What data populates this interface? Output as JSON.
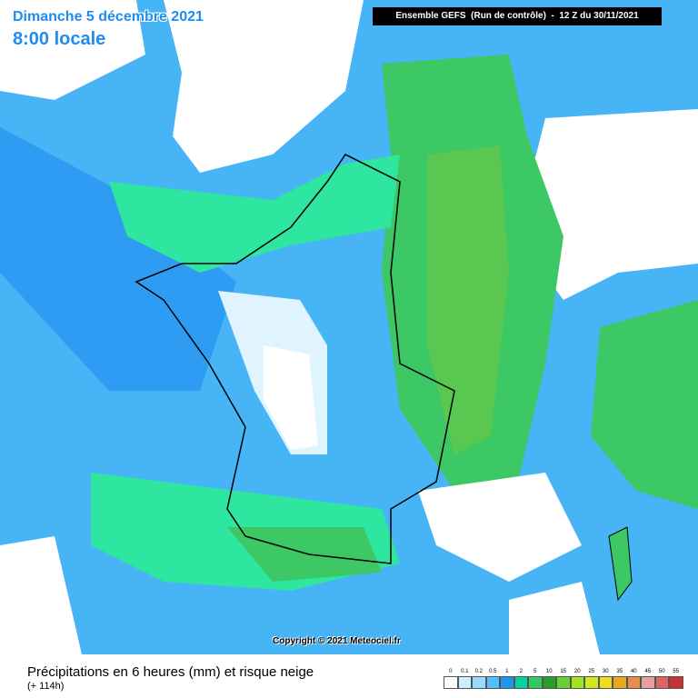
{
  "header": {
    "date": "Dimanche 5 décembre 2021",
    "time": "8:00 locale",
    "run": "Ensemble GEFS  (Run de contrôle)  -  12 Z du 30/11/2021"
  },
  "copyright": "Copyright © 2021 Meteociel.fr",
  "footer": {
    "title": "Précipitations en 6 heures (mm) et risque neige",
    "lead": "(+ 114h)"
  },
  "legend": [
    {
      "label": 0,
      "color": "#ffffff"
    },
    {
      "label": 0.1,
      "color": "#c8f0ff"
    },
    {
      "label": 0.2,
      "color": "#96dcff"
    },
    {
      "label": 0.5,
      "color": "#50c0ff"
    },
    {
      "label": 1,
      "color": "#1e96f0"
    },
    {
      "label": 2,
      "color": "#00d2a0"
    },
    {
      "label": 5,
      "color": "#32c864"
    },
    {
      "label": 10,
      "color": "#28a028"
    },
    {
      "label": 15,
      "color": "#64d232"
    },
    {
      "label": 20,
      "color": "#a0e61e"
    },
    {
      "label": 25,
      "color": "#d2e61e"
    },
    {
      "label": 30,
      "color": "#f0dc1e"
    },
    {
      "label": 35,
      "color": "#e6aa1e"
    },
    {
      "label": 40,
      "color": "#e68c50"
    },
    {
      "label": 45,
      "color": "#e6a0a0"
    },
    {
      "label": 50,
      "color": "#dc6464"
    },
    {
      "label": 55,
      "color": "#c83232"
    }
  ]
}
